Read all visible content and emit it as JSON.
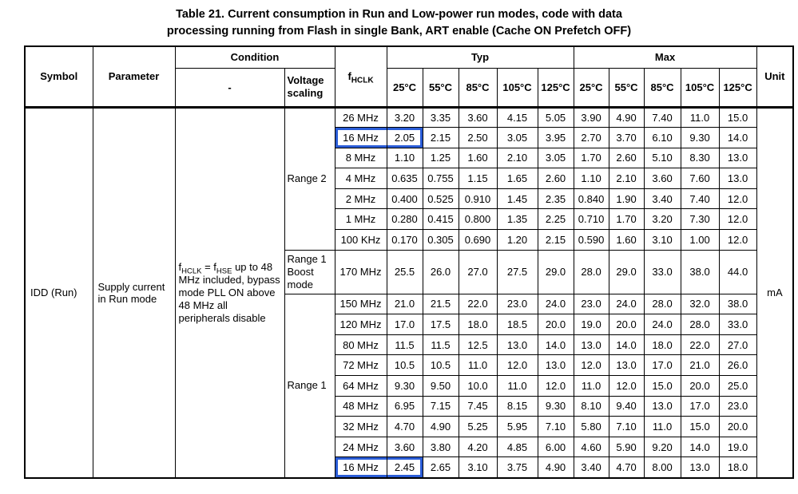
{
  "title": {
    "line1": "Table 21. Current consumption in Run and Low-power run modes, code with data",
    "line2": "processing running from Flash in single Bank, ART enable (Cache ON Prefetch OFF)"
  },
  "header": {
    "symbol": "Symbol",
    "parameter": "Parameter",
    "condition": "Condition",
    "dash": "-",
    "voltage_scaling": "Voltage scaling",
    "fhclk_f": "f",
    "fhclk_sub": "HCLK",
    "typ": "Typ",
    "max": "Max",
    "unit": "Unit",
    "temps": [
      "25°C",
      "55°C",
      "85°C",
      "105°C",
      "125°C"
    ]
  },
  "body": {
    "symbol": "IDD (Run)",
    "parameter": "Supply current in Run mode",
    "condition": {
      "f1": "f",
      "sub1": "HCLK",
      "eq": " = f",
      "sub2": "HSE",
      "rest": " up to 48 MHz included, bypass mode PLL ON above 48 MHz all peripherals disable"
    },
    "unit": "mA",
    "highlight_color": "#2a5cd6",
    "groups": [
      {
        "label": "Range 2",
        "span": 7,
        "tall": false
      },
      {
        "label": "Range 1 Boost mode",
        "span": 1,
        "tall": true
      },
      {
        "label": "Range 1",
        "span": 9,
        "tall": false
      }
    ],
    "rows": [
      {
        "freq": "26 MHz",
        "typ": [
          "3.20",
          "3.35",
          "3.60",
          "4.15",
          "5.05"
        ],
        "max": [
          "3.90",
          "4.90",
          "7.40",
          "11.0",
          "15.0"
        ],
        "highlight": false
      },
      {
        "freq": "16 MHz",
        "typ": [
          "2.05",
          "2.15",
          "2.50",
          "3.05",
          "3.95"
        ],
        "max": [
          "2.70",
          "3.70",
          "6.10",
          "9.30",
          "14.0"
        ],
        "highlight": true
      },
      {
        "freq": "8 MHz",
        "typ": [
          "1.10",
          "1.25",
          "1.60",
          "2.10",
          "3.05"
        ],
        "max": [
          "1.70",
          "2.60",
          "5.10",
          "8.30",
          "13.0"
        ],
        "highlight": false
      },
      {
        "freq": "4 MHz",
        "typ": [
          "0.635",
          "0.755",
          "1.15",
          "1.65",
          "2.60"
        ],
        "max": [
          "1.10",
          "2.10",
          "3.60",
          "7.60",
          "13.0"
        ],
        "highlight": false
      },
      {
        "freq": "2 MHz",
        "typ": [
          "0.400",
          "0.525",
          "0.910",
          "1.45",
          "2.35"
        ],
        "max": [
          "0.840",
          "1.90",
          "3.40",
          "7.40",
          "12.0"
        ],
        "highlight": false
      },
      {
        "freq": "1 MHz",
        "typ": [
          "0.280",
          "0.415",
          "0.800",
          "1.35",
          "2.25"
        ],
        "max": [
          "0.710",
          "1.70",
          "3.20",
          "7.30",
          "12.0"
        ],
        "highlight": false
      },
      {
        "freq": "100 KHz",
        "typ": [
          "0.170",
          "0.305",
          "0.690",
          "1.20",
          "2.15"
        ],
        "max": [
          "0.590",
          "1.60",
          "3.10",
          "1.00",
          "12.0"
        ],
        "highlight": false
      },
      {
        "freq": "170 MHz",
        "typ": [
          "25.5",
          "26.0",
          "27.0",
          "27.5",
          "29.0"
        ],
        "max": [
          "28.0",
          "29.0",
          "33.0",
          "38.0",
          "44.0"
        ],
        "highlight": false
      },
      {
        "freq": "150 MHz",
        "typ": [
          "21.0",
          "21.5",
          "22.0",
          "23.0",
          "24.0"
        ],
        "max": [
          "23.0",
          "24.0",
          "28.0",
          "32.0",
          "38.0"
        ],
        "highlight": false
      },
      {
        "freq": "120 MHz",
        "typ": [
          "17.0",
          "17.5",
          "18.0",
          "18.5",
          "20.0"
        ],
        "max": [
          "19.0",
          "20.0",
          "24.0",
          "28.0",
          "33.0"
        ],
        "highlight": false
      },
      {
        "freq": "80 MHz",
        "typ": [
          "11.5",
          "11.5",
          "12.5",
          "13.0",
          "14.0"
        ],
        "max": [
          "13.0",
          "14.0",
          "18.0",
          "22.0",
          "27.0"
        ],
        "highlight": false
      },
      {
        "freq": "72 MHz",
        "typ": [
          "10.5",
          "10.5",
          "11.0",
          "12.0",
          "13.0"
        ],
        "max": [
          "12.0",
          "13.0",
          "17.0",
          "21.0",
          "26.0"
        ],
        "highlight": false
      },
      {
        "freq": "64 MHz",
        "typ": [
          "9.30",
          "9.50",
          "10.0",
          "11.0",
          "12.0"
        ],
        "max": [
          "11.0",
          "12.0",
          "15.0",
          "20.0",
          "25.0"
        ],
        "highlight": false
      },
      {
        "freq": "48 MHz",
        "typ": [
          "6.95",
          "7.15",
          "7.45",
          "8.15",
          "9.30"
        ],
        "max": [
          "8.10",
          "9.40",
          "13.0",
          "17.0",
          "23.0"
        ],
        "highlight": false
      },
      {
        "freq": "32 MHz",
        "typ": [
          "4.70",
          "4.90",
          "5.25",
          "5.95",
          "7.10"
        ],
        "max": [
          "5.80",
          "7.10",
          "11.0",
          "15.0",
          "20.0"
        ],
        "highlight": false
      },
      {
        "freq": "24 MHz",
        "typ": [
          "3.60",
          "3.80",
          "4.20",
          "4.85",
          "6.00"
        ],
        "max": [
          "4.60",
          "5.90",
          "9.20",
          "14.0",
          "19.0"
        ],
        "highlight": false
      },
      {
        "freq": "16 MHz",
        "typ": [
          "2.45",
          "2.65",
          "3.10",
          "3.75",
          "4.90"
        ],
        "max": [
          "3.40",
          "4.70",
          "8.00",
          "13.0",
          "18.0"
        ],
        "highlight": true
      }
    ]
  }
}
